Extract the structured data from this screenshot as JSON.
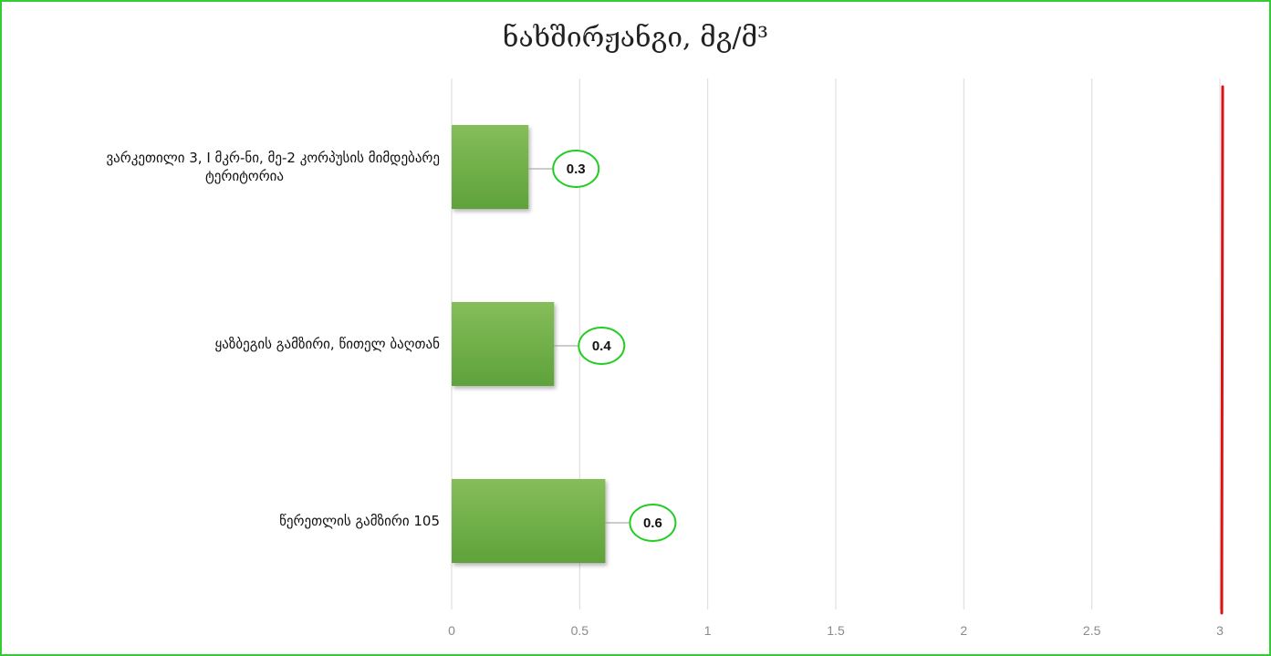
{
  "chart_data": {
    "type": "bar",
    "orientation": "horizontal",
    "title": "ნახშირჟანგი, მგ/მ³",
    "categories": [
      [
        "ვარკეთილი 3, I მკრ-ნი, მე-2 კორპუსის მიმდებარე",
        "ტერიტორია"
      ],
      [
        "ყაზბეგის გამზირი, წითელ ბაღთან"
      ],
      [
        "წერეთლის გამზირი 105"
      ]
    ],
    "values": [
      0.3,
      0.4,
      0.6
    ],
    "value_labels": [
      "0.3",
      "0.4",
      "0.6"
    ],
    "xlim": [
      0,
      3
    ],
    "ticks": [
      "0",
      "0.5",
      "1",
      "1.5",
      "2",
      "2.5",
      "3"
    ],
    "reference_line": 3,
    "grid": true,
    "legend": "none",
    "colors": {
      "bar_light": "#85bd5a",
      "bar_dark": "#5fa23a",
      "label_outline": "#22cc22",
      "reference_line": "#dd1111",
      "gridline": "#d9d9d9",
      "frame": "#33cc33"
    }
  }
}
